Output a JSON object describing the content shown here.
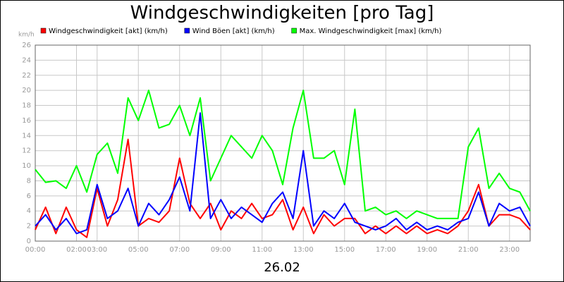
{
  "chart_data": {
    "type": "line",
    "title": "Windgeschwindigkeiten [pro Tag]",
    "y_label": "km/h",
    "x_label": "26.02",
    "x": [
      0,
      0.5,
      1,
      1.5,
      2,
      2.5,
      3,
      3.5,
      4,
      4.5,
      5,
      5.5,
      6,
      6.5,
      7,
      7.5,
      8,
      8.5,
      9,
      9.5,
      10,
      10.5,
      11,
      11.5,
      12,
      12.5,
      13,
      13.5,
      14,
      14.5,
      15,
      15.5,
      16,
      16.5,
      17,
      17.5,
      18,
      18.5,
      19,
      19.5,
      20,
      20.5,
      21,
      21.5,
      22,
      22.5,
      23,
      23.5,
      24
    ],
    "series": [
      {
        "name": "Windgeschwindigkeit [akt] (km/h)",
        "color": "#ff0000",
        "values": [
          1.5,
          4.5,
          1,
          4.5,
          1.5,
          0.5,
          7,
          2,
          5.5,
          13.5,
          2,
          3,
          2.5,
          4,
          11,
          5,
          3,
          5,
          1.5,
          4,
          3,
          5,
          3,
          3.5,
          5.5,
          1.5,
          4.5,
          1,
          3.5,
          2,
          3,
          3,
          1,
          2,
          1,
          2,
          1,
          2,
          1,
          1.5,
          1,
          2,
          4,
          7.5,
          2,
          3.5,
          3.5,
          3,
          1.5
        ]
      },
      {
        "name": "Wind Böen [akt] (km/h)",
        "color": "#0000ff",
        "values": [
          2,
          3.5,
          1.5,
          3,
          1,
          1.5,
          7.5,
          3,
          4,
          7,
          2,
          5,
          3.5,
          5.5,
          8.5,
          4,
          17,
          3,
          5.5,
          3,
          4.5,
          3.5,
          2.5,
          5,
          6.5,
          3,
          12,
          2,
          4,
          3,
          5,
          2.5,
          2,
          1.5,
          2,
          3,
          1.5,
          2.5,
          1.5,
          2,
          1.5,
          2.5,
          3,
          6.5,
          2,
          5,
          4,
          4.5,
          2
        ]
      },
      {
        "name": "Max. Windgeschwindigkeit [max] (km/h)",
        "color": "#00ff00",
        "values": [
          9.5,
          7.8,
          8,
          7,
          10,
          6.5,
          11.5,
          13,
          9,
          19,
          16,
          20,
          15,
          15.5,
          18,
          14,
          19,
          8,
          11,
          14,
          12.5,
          11,
          14,
          12,
          7.5,
          15,
          20,
          11,
          11,
          12,
          7.5,
          17.5,
          4,
          4.5,
          3.5,
          4,
          3,
          4,
          3.5,
          3,
          3,
          3,
          12.5,
          15,
          7,
          9,
          7,
          6.5,
          4
        ]
      }
    ],
    "xlim": [
      0,
      24
    ],
    "xticks": [
      {
        "value": 0,
        "label": "00:00"
      },
      {
        "value": 2,
        "label": "02:00"
      },
      {
        "value": 3,
        "label": "03:00"
      },
      {
        "value": 5,
        "label": "05:00"
      },
      {
        "value": 7,
        "label": "07:00"
      },
      {
        "value": 9,
        "label": "09:00"
      },
      {
        "value": 11,
        "label": "11:00"
      },
      {
        "value": 13,
        "label": "13:00"
      },
      {
        "value": 15,
        "label": "15:00"
      },
      {
        "value": 17,
        "label": "17:00"
      },
      {
        "value": 19,
        "label": "19:00"
      },
      {
        "value": 21,
        "label": "21:00"
      },
      {
        "value": 23,
        "label": "23:00"
      }
    ],
    "ylim": [
      0,
      26
    ],
    "yticks": [
      0,
      2,
      4,
      6,
      8,
      10,
      12,
      14,
      16,
      18,
      20,
      22,
      24,
      26
    ],
    "grid": true
  }
}
